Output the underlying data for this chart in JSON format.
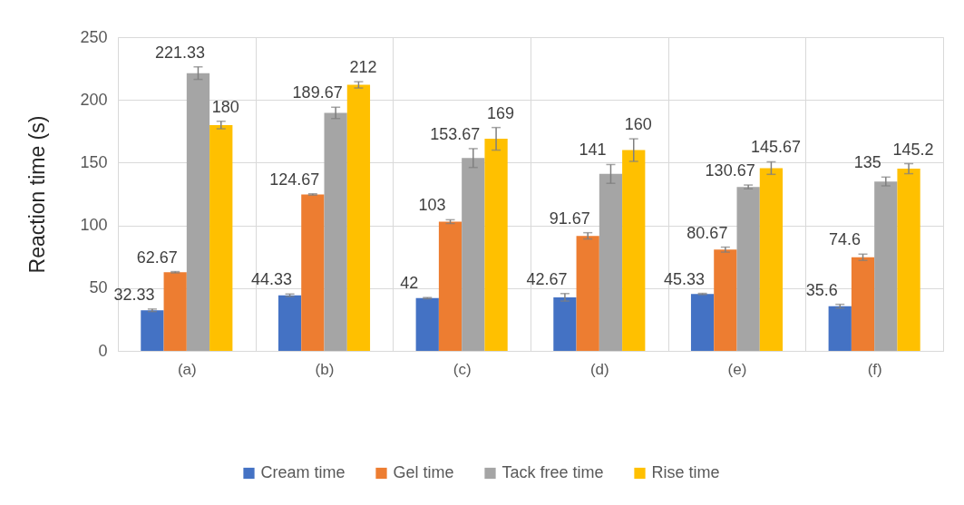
{
  "chart_data": {
    "type": "bar",
    "ylabel": "Reaction time (s)",
    "categories": [
      "(a)",
      "(b)",
      "(c)",
      "(d)",
      "(e)",
      "(f)"
    ],
    "series": [
      {
        "name": "Cream time",
        "color": "#4472c4",
        "values": [
          32.33,
          44.33,
          42,
          42.67,
          45.33,
          35.6
        ],
        "errors": [
          1,
          1,
          0.5,
          3,
          0.5,
          1.5
        ]
      },
      {
        "name": "Gel time",
        "color": "#ed7d31",
        "values": [
          62.67,
          124.67,
          103,
          91.67,
          80.67,
          74.6
        ],
        "errors": [
          0.5,
          0.5,
          1.5,
          2.5,
          2,
          2.5
        ]
      },
      {
        "name": "Tack free time",
        "color": "#a5a5a5",
        "values": [
          221.33,
          189.67,
          153.67,
          141,
          130.67,
          135
        ],
        "errors": [
          5,
          4.5,
          7.5,
          7.5,
          1.5,
          3.5
        ]
      },
      {
        "name": "Rise time",
        "color": "#ffc000",
        "values": [
          180,
          212,
          169,
          160,
          145.67,
          145.2
        ],
        "errors": [
          3,
          2.5,
          9,
          9,
          5,
          4
        ]
      }
    ],
    "ylim": [
      0,
      250
    ],
    "yticks": [
      0,
      50,
      100,
      150,
      200,
      250
    ],
    "grid": true,
    "legend": "bottom",
    "data_labels": true
  }
}
